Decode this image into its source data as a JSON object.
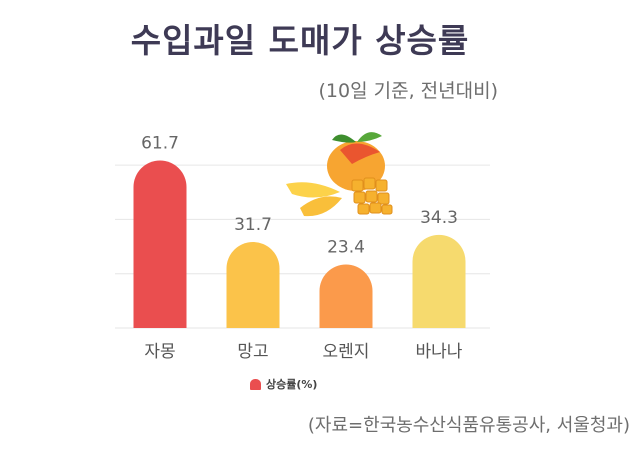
{
  "chart_data": {
    "type": "bar",
    "title": "수입과일 도매가 상승률",
    "subtitle": "(10일 기준, 전년대비)",
    "categories": [
      "자몽",
      "망고",
      "오렌지",
      "바나나"
    ],
    "series": [
      {
        "name": "상승률(%)",
        "values": [
          61.7,
          31.7,
          23.4,
          34.3
        ]
      }
    ],
    "bar_colors": [
      "#ea4e4f",
      "#fbc34a",
      "#fb9a4b",
      "#f6da6e"
    ],
    "legend_color": "#ea4e4f",
    "ylim": [
      0,
      70
    ],
    "grid": true,
    "legend_position": "bottom",
    "source": "(자료=한국농수산식품유통공사, 서울청과)",
    "decoration": "mango-illustration"
  }
}
